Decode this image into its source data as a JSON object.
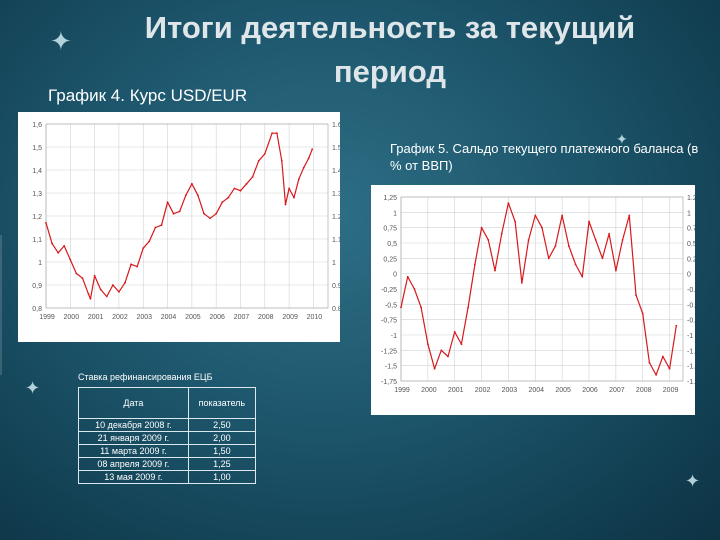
{
  "slide": {
    "title": "Итоги деятельность за текущий период",
    "caption1": "График 4. Курс USD/EUR",
    "caption2": "График 5. Сальдо текущего платежного баланса (в % от ВВП)"
  },
  "colors": {
    "series": "#d7191c",
    "grid": "#cfd3d6",
    "axis": "#555555"
  },
  "icons": [
    "sparkle-icon",
    "sparkle-icon",
    "sparkle-icon",
    "sparkle-icon"
  ],
  "table": {
    "title": "Ставка рефинансирования ЕЦБ",
    "headers": [
      "Дата",
      "показатель"
    ],
    "rows": [
      [
        "10 декабря 2008 г.",
        "2,50"
      ],
      [
        "21 января 2009 г.",
        "2,00"
      ],
      [
        "11 марта 2009 г.",
        "1,50"
      ],
      [
        "08 апреля 2009 г.",
        "1,25"
      ],
      [
        "13 мая 2009 г.",
        "1,00"
      ]
    ]
  },
  "chart_data": [
    {
      "type": "line",
      "title": "График 4. Курс USD/EUR",
      "xlabel": "",
      "ylabel": "",
      "xlim": [
        1999,
        2010.6
      ],
      "ylim": [
        0.8,
        1.6
      ],
      "grid": true,
      "y_ticks_left": [
        "1,6",
        "1,5",
        "1,4",
        "1,3",
        "1,2",
        "1,1",
        "1",
        "0,9",
        "0,8"
      ],
      "y_ticks_right": [
        "1.6",
        "1.5",
        "1.4",
        "1.3",
        "1.2",
        "1.1",
        "1",
        "0.9",
        "0.8"
      ],
      "x_ticks": [
        "1999",
        "2000",
        "2001",
        "2002",
        "2003",
        "2004",
        "2005",
        "2006",
        "2007",
        "2008",
        "2009",
        "2010"
      ],
      "series": [
        {
          "x": [
            1999.0,
            1999.25,
            1999.5,
            1999.75,
            2000.0,
            2000.25,
            2000.5,
            2000.75,
            2000.83,
            2001.0,
            2001.25,
            2001.5,
            2001.75,
            2002.0,
            2002.25,
            2002.5,
            2002.75,
            2003.0,
            2003.25,
            2003.5,
            2003.75,
            2004.0,
            2004.25,
            2004.5,
            2004.75,
            2005.0,
            2005.25,
            2005.5,
            2005.75,
            2006.0,
            2006.25,
            2006.5,
            2006.75,
            2007.0,
            2007.25,
            2007.5,
            2007.75,
            2008.0,
            2008.3,
            2008.5,
            2008.7,
            2008.85,
            2009.0,
            2009.2,
            2009.4,
            2009.6,
            2009.8,
            2009.95
          ],
          "y": [
            1.17,
            1.08,
            1.04,
            1.07,
            1.01,
            0.95,
            0.93,
            0.86,
            0.84,
            0.94,
            0.88,
            0.85,
            0.9,
            0.87,
            0.91,
            0.99,
            0.98,
            1.06,
            1.09,
            1.15,
            1.16,
            1.26,
            1.21,
            1.22,
            1.29,
            1.34,
            1.29,
            1.21,
            1.19,
            1.21,
            1.26,
            1.28,
            1.32,
            1.31,
            1.34,
            1.37,
            1.44,
            1.47,
            1.56,
            1.56,
            1.44,
            1.25,
            1.32,
            1.28,
            1.36,
            1.41,
            1.45,
            1.49
          ]
        }
      ]
    },
    {
      "type": "line",
      "title": "График 5. Сальдо текущего платежного баланса (в % от ВВП)",
      "xlabel": "",
      "ylabel": "",
      "xlim": [
        1999,
        2009.5
      ],
      "ylim": [
        -1.75,
        1.25
      ],
      "grid": true,
      "y_ticks_left": [
        "1,25",
        "1",
        "0,75",
        "0,5",
        "0,25",
        "0",
        "-0,25",
        "-0,5",
        "-0,75",
        "-1",
        "-1,25",
        "-1,5",
        "-1,75"
      ],
      "y_ticks_right": [
        "1.25",
        "1",
        "0.75",
        "0.5",
        "0.25",
        "0",
        "-0.25",
        "-0.5",
        "-0.75",
        "-1",
        "-1.25",
        "-1.5",
        "-1.75"
      ],
      "x_ticks": [
        "1999",
        "2000",
        "2001",
        "2002",
        "2003",
        "2004",
        "2005",
        "2006",
        "2007",
        "2008",
        "2009"
      ],
      "series": [
        {
          "x": [
            1999.0,
            1999.25,
            1999.5,
            1999.75,
            2000.0,
            2000.25,
            2000.5,
            2000.75,
            2001.0,
            2001.25,
            2001.5,
            2001.75,
            2002.0,
            2002.25,
            2002.5,
            2002.75,
            2003.0,
            2003.25,
            2003.5,
            2003.75,
            2004.0,
            2004.25,
            2004.5,
            2004.75,
            2005.0,
            2005.25,
            2005.5,
            2005.75,
            2006.0,
            2006.25,
            2006.5,
            2006.75,
            2007.0,
            2007.25,
            2007.5,
            2007.75,
            2008.0,
            2008.25,
            2008.5,
            2008.75,
            2009.0,
            2009.25
          ],
          "y": [
            -0.55,
            -0.05,
            -0.25,
            -0.55,
            -1.15,
            -1.55,
            -1.25,
            -1.35,
            -0.95,
            -1.15,
            -0.55,
            0.15,
            0.75,
            0.55,
            0.05,
            0.65,
            1.15,
            0.85,
            -0.15,
            0.55,
            0.95,
            0.75,
            0.25,
            0.45,
            0.95,
            0.45,
            0.15,
            -0.05,
            0.85,
            0.55,
            0.25,
            0.65,
            0.05,
            0.55,
            0.95,
            -0.35,
            -0.65,
            -1.45,
            -1.65,
            -1.35,
            -1.55,
            -0.85
          ]
        }
      ]
    }
  ]
}
